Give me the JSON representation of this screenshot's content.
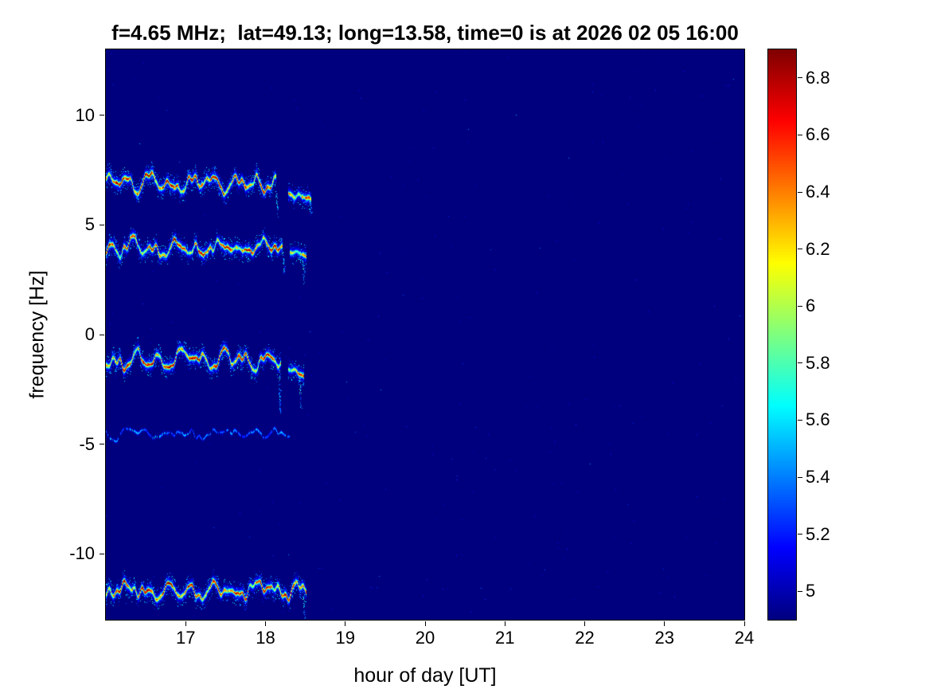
{
  "title": "f=4.65 MHz;  lat=49.13; long=13.58, time=0 is at 2026 02 05 16:00",
  "chart_data": {
    "type": "heatmap",
    "title": "f=4.65 MHz;  lat=49.13; long=13.58, time=0 is at 2026 02 05 16:00",
    "xlabel": "hour of day [UT]",
    "ylabel": "frequency [Hz]",
    "xlim": [
      16,
      24
    ],
    "ylim": [
      -13,
      13
    ],
    "x_ticks": [
      17,
      18,
      19,
      20,
      21,
      22,
      23,
      24
    ],
    "x_tick_labels": [
      "17",
      "18",
      "19",
      "20",
      "21",
      "22",
      "23",
      "24"
    ],
    "y_ticks": [
      10,
      5,
      0,
      -5,
      -10
    ],
    "y_tick_labels": [
      "10",
      "5",
      "0",
      "-5",
      "-10"
    ],
    "grid": false,
    "background_value": 4.9,
    "colorbar": {
      "position": "right",
      "colormap": "jet",
      "min": 4.9,
      "max": 6.9,
      "ticks": [
        5,
        5.2,
        5.4,
        5.6,
        5.8,
        6,
        6.2,
        6.4,
        6.6,
        6.8
      ],
      "tick_labels": [
        "5",
        "5.2",
        "5.4",
        "5.6",
        "5.8",
        "6",
        "6.2",
        "6.4",
        "6.6",
        "6.8"
      ]
    },
    "traces": [
      {
        "id": "trace-1",
        "f_center": 6.95,
        "wobble_amp": 0.3,
        "x_start": 16.0,
        "x_end": 18.12,
        "peak_value": 6.9
      },
      {
        "id": "trace-1-tail",
        "f_center": 6.55,
        "wobble_amp": 0.12,
        "x_start": 18.28,
        "x_end": 18.56,
        "peak_value": 6.6,
        "slope": -1.2
      },
      {
        "id": "trace-2",
        "f_center": 3.95,
        "wobble_amp": 0.28,
        "x_start": 16.0,
        "x_end": 18.2,
        "peak_value": 6.75
      },
      {
        "id": "trace-2-tail",
        "f_center": 3.75,
        "wobble_amp": 0.1,
        "x_start": 18.3,
        "x_end": 18.5,
        "peak_value": 6.5,
        "slope": -0.8
      },
      {
        "id": "trace-3",
        "f_center": -1.15,
        "wobble_amp": 0.3,
        "x_start": 16.0,
        "x_end": 18.18,
        "peak_value": 6.9
      },
      {
        "id": "trace-3-tail",
        "f_center": -1.5,
        "wobble_amp": 0.1,
        "x_start": 18.28,
        "x_end": 18.47,
        "peak_value": 6.6,
        "slope": -2.0
      },
      {
        "id": "trace-4-faint",
        "f_center": -4.55,
        "wobble_amp": 0.18,
        "x_start": 16.0,
        "x_end": 18.3,
        "peak_value": 5.55
      },
      {
        "id": "trace-5",
        "f_center": -11.65,
        "wobble_amp": 0.28,
        "x_start": 16.0,
        "x_end": 18.5,
        "peak_value": 6.9
      }
    ],
    "streaks": [
      {
        "x": 18.13,
        "f_from": 6.55,
        "f_to": 5.35
      },
      {
        "x": 18.55,
        "f_from": 6.1,
        "f_to": 5.5
      },
      {
        "x": 18.21,
        "f_from": 3.8,
        "f_to": 2.75
      },
      {
        "x": 18.46,
        "f_from": 3.45,
        "f_to": 2.3
      },
      {
        "x": 18.16,
        "f_from": -1.35,
        "f_to": -3.55
      },
      {
        "x": 18.42,
        "f_from": -1.9,
        "f_to": -3.35
      },
      {
        "x": 18.47,
        "f_from": -11.9,
        "f_to": -13.2
      }
    ]
  }
}
